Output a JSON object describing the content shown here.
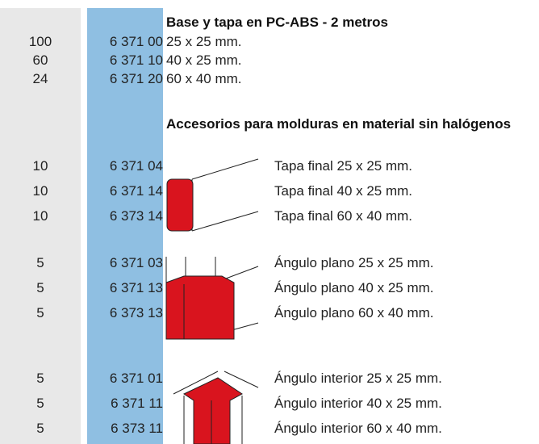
{
  "sections": [
    {
      "title": "Base y tapa en PC-ABS - 2 metros",
      "rows": [
        {
          "qty": "100",
          "ref": "6 371 00",
          "desc": "25 x 25 mm."
        },
        {
          "qty": "60",
          "ref": "6 371 10",
          "desc": "40 x 25 mm."
        },
        {
          "qty": "24",
          "ref": "6 371 20",
          "desc": "60 x 40 mm."
        }
      ]
    },
    {
      "title": "Accesorios para molduras en material sin halógenos",
      "rows": [
        {
          "qty": "10",
          "ref": "6 371 04",
          "desc": "Tapa final 25 x 25 mm."
        },
        {
          "qty": "10",
          "ref": "6 371 14",
          "desc": "Tapa final 40 x 25 mm."
        },
        {
          "qty": "10",
          "ref": "6 373 14",
          "desc": "Tapa final 60 x 40 mm."
        },
        {
          "qty": "5",
          "ref": "6 371 03",
          "desc": "Ángulo plano 25 x 25 mm."
        },
        {
          "qty": "5",
          "ref": "6 371 13",
          "desc": "Ángulo plano 40 x 25 mm."
        },
        {
          "qty": "5",
          "ref": "6 373 13",
          "desc": "Ángulo plano 60 x 40 mm."
        },
        {
          "qty": "5",
          "ref": "6 371 01",
          "desc": "Ángulo interior 25 x 25 mm."
        },
        {
          "qty": "5",
          "ref": "6 371 11",
          "desc": "Ángulo interior 40 x 25 mm."
        },
        {
          "qty": "5",
          "ref": "6 373 11",
          "desc": "Ángulo interior 60 x 40 mm."
        }
      ]
    }
  ]
}
